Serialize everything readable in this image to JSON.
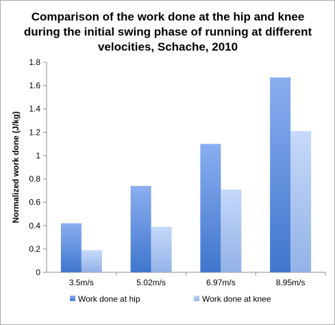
{
  "chart_data": {
    "type": "bar",
    "title": "Comparison of the work done at the hip and knee during the initial swing phase of running at different velocities, Schache, 2010",
    "title_lines": [
      "Comparison of the work done at the hip and knee",
      "during the initial swing phase of running at different",
      "velocities, Schache, 2010"
    ],
    "xlabel": "",
    "ylabel": "Normalized work done (J/kg)",
    "categories": [
      "3.5m/s",
      "5.02m/s",
      "6.97m/s",
      "8.95m/s"
    ],
    "ylim": [
      0,
      1.8
    ],
    "ytick_step": 0.2,
    "yticks": [
      "0",
      "0.2",
      "0.4",
      "0.6",
      "0.8",
      "1",
      "1.2",
      "1.4",
      "1.6",
      "1.8"
    ],
    "grid": false,
    "legend_position": "bottom",
    "series": [
      {
        "name": "Work done at hip",
        "values": [
          0.42,
          0.74,
          1.1,
          1.67
        ],
        "color_top": "#8aaef0",
        "color_bottom": "#3f76cc"
      },
      {
        "name": "Work done at knee",
        "values": [
          0.19,
          0.39,
          0.71,
          1.21
        ],
        "color_top": "#c6d9fb",
        "color_bottom": "#93b2e6"
      }
    ]
  }
}
